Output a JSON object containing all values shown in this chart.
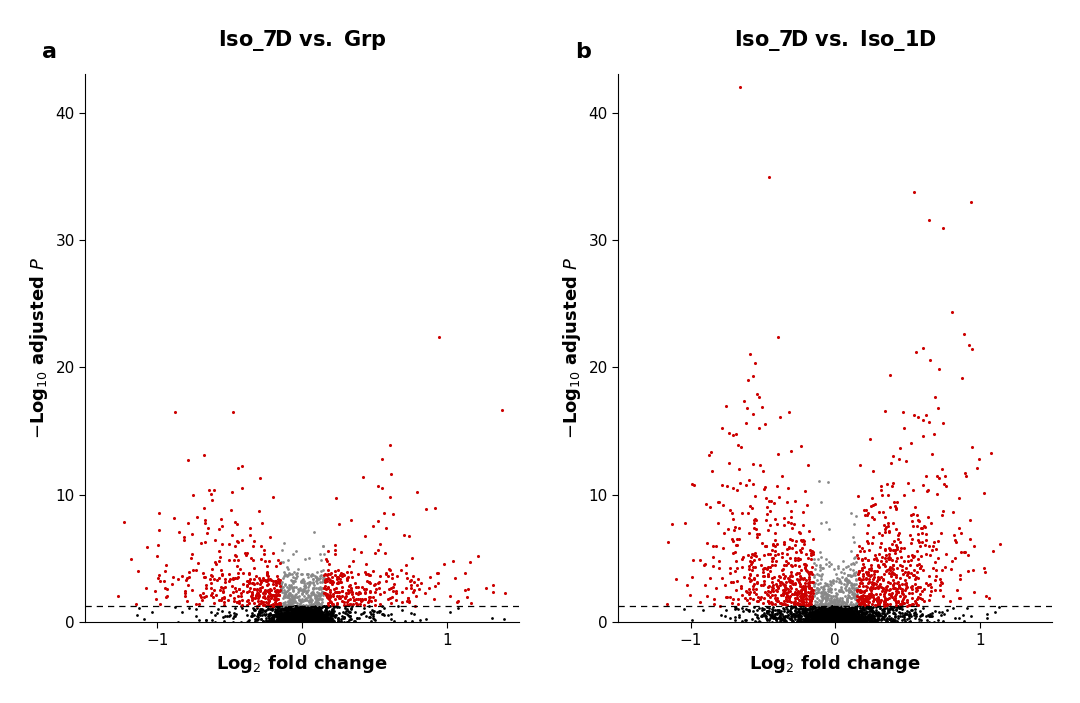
{
  "panel_a": {
    "title_parts": [
      "Iso_7D ",
      "vs",
      ".",
      " Grp"
    ],
    "label": "a",
    "xlim": [
      -1.5,
      1.5
    ],
    "ylim": [
      0,
      43
    ],
    "xticks": [
      -1,
      0,
      1
    ],
    "yticks": [
      0,
      10,
      20,
      30,
      40
    ],
    "dashed_y": 1.3,
    "seed": 42
  },
  "panel_b": {
    "title_parts": [
      "Iso_7D ",
      "vs",
      ".",
      " Iso_1D"
    ],
    "label": "b",
    "xlim": [
      -1.5,
      1.5
    ],
    "ylim": [
      0,
      43
    ],
    "xticks": [
      -1,
      0,
      1
    ],
    "yticks": [
      0,
      10,
      20,
      30,
      40
    ],
    "dashed_y": 1.3,
    "seed": 99
  },
  "xlabel": "Log$_2$ fold change",
  "ylabel": "$-$Log$_{10}$ adjusted $P$",
  "black_color": "#000000",
  "gray_color": "#888888",
  "red_color": "#CC0000",
  "bg_color": "#ffffff",
  "point_size_black": 4,
  "point_size_gray": 4,
  "point_size_red": 5,
  "title_fontsize": 15,
  "label_fontsize": 13,
  "panel_label_fontsize": 16,
  "tick_fontsize": 11,
  "sig_y": 1.3,
  "fc_cut": 0.15
}
